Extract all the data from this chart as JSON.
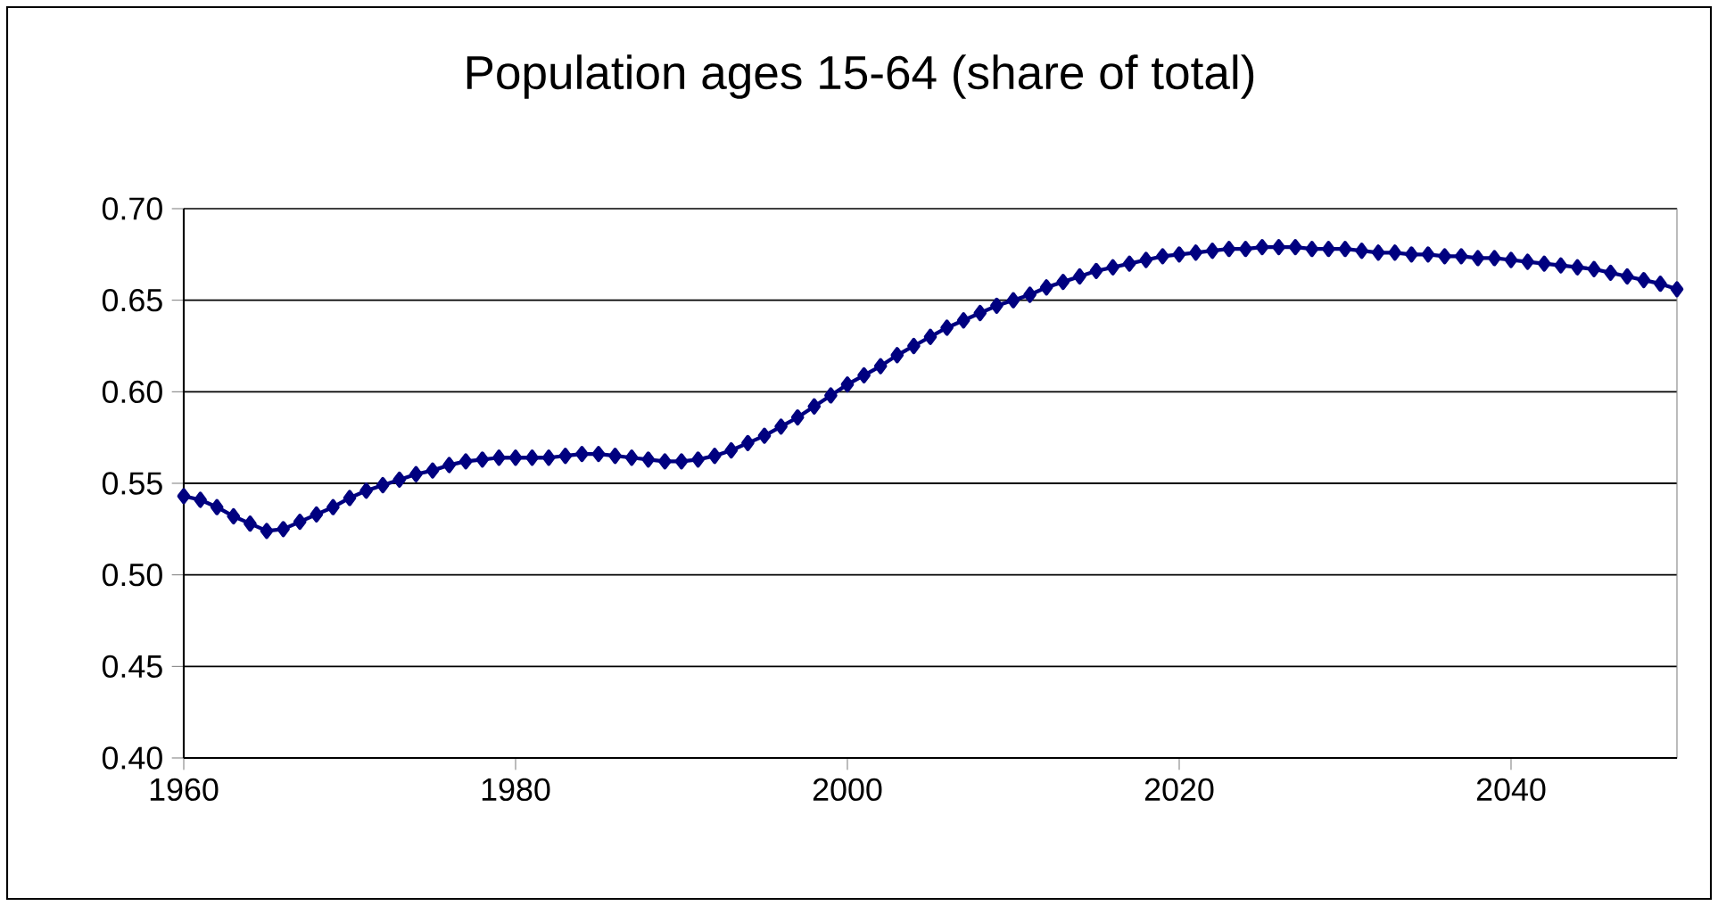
{
  "chart_data": {
    "type": "line",
    "title": "Population ages 15-64 (share of total)",
    "x": [
      1960,
      1961,
      1962,
      1963,
      1964,
      1965,
      1966,
      1967,
      1968,
      1969,
      1970,
      1971,
      1972,
      1973,
      1974,
      1975,
      1976,
      1977,
      1978,
      1979,
      1980,
      1981,
      1982,
      1983,
      1984,
      1985,
      1986,
      1987,
      1988,
      1989,
      1990,
      1991,
      1992,
      1993,
      1994,
      1995,
      1996,
      1997,
      1998,
      1999,
      2000,
      2001,
      2002,
      2003,
      2004,
      2005,
      2006,
      2007,
      2008,
      2009,
      2010,
      2011,
      2012,
      2013,
      2014,
      2015,
      2016,
      2017,
      2018,
      2019,
      2020,
      2021,
      2022,
      2023,
      2024,
      2025,
      2026,
      2027,
      2028,
      2029,
      2030,
      2031,
      2032,
      2033,
      2034,
      2035,
      2036,
      2037,
      2038,
      2039,
      2040,
      2041,
      2042,
      2043,
      2044,
      2045,
      2046,
      2047,
      2048,
      2049,
      2050
    ],
    "values": [
      0.543,
      0.541,
      0.537,
      0.532,
      0.528,
      0.524,
      0.525,
      0.529,
      0.533,
      0.537,
      0.542,
      0.546,
      0.549,
      0.552,
      0.555,
      0.557,
      0.56,
      0.562,
      0.563,
      0.564,
      0.564,
      0.564,
      0.564,
      0.565,
      0.566,
      0.566,
      0.565,
      0.564,
      0.563,
      0.562,
      0.562,
      0.563,
      0.565,
      0.568,
      0.572,
      0.576,
      0.581,
      0.586,
      0.592,
      0.598,
      0.604,
      0.609,
      0.614,
      0.62,
      0.625,
      0.63,
      0.635,
      0.639,
      0.643,
      0.647,
      0.65,
      0.653,
      0.657,
      0.66,
      0.663,
      0.666,
      0.668,
      0.67,
      0.672,
      0.674,
      0.675,
      0.676,
      0.677,
      0.678,
      0.678,
      0.679,
      0.679,
      0.679,
      0.678,
      0.678,
      0.678,
      0.677,
      0.676,
      0.676,
      0.675,
      0.675,
      0.674,
      0.674,
      0.673,
      0.673,
      0.672,
      0.671,
      0.67,
      0.669,
      0.668,
      0.667,
      0.665,
      0.663,
      0.661,
      0.659,
      0.656
    ],
    "color": "#000080",
    "marker": "diamond",
    "line_style": "solid",
    "xlim": [
      1960,
      2050
    ],
    "xticks": [
      1960,
      1980,
      2000,
      2020,
      2040
    ],
    "ylim": [
      0.4,
      0.7
    ],
    "yticks": [
      {
        "value": 0.4,
        "label": "0.40"
      },
      {
        "value": 0.45,
        "label": "0.45"
      },
      {
        "value": 0.5,
        "label": "0.50"
      },
      {
        "value": 0.55,
        "label": "0.55"
      },
      {
        "value": 0.6,
        "label": "0.60"
      },
      {
        "value": 0.65,
        "label": "0.65"
      },
      {
        "value": 0.7,
        "label": "0.70"
      }
    ],
    "grid": "y"
  }
}
